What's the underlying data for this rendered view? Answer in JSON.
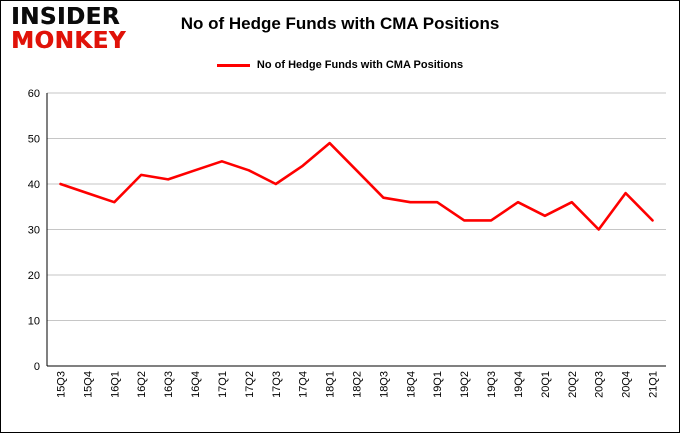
{
  "logo": {
    "line1": "INSIDER",
    "line2": "MONKEY"
  },
  "colors": {
    "series_red": "#fe0000",
    "logo_red": "#e01209",
    "gridline": "#c6c6c6",
    "axis": "#000000",
    "text": "#000000",
    "background": "#ffffff"
  },
  "chart_data": {
    "type": "line",
    "title": "No of Hedge Funds with CMA Positions",
    "legend": "No of Hedge Funds with CMA Positions",
    "legend_position": "top",
    "grid": true,
    "xlabel": "",
    "ylabel": "",
    "ylim": [
      0,
      60
    ],
    "ytick_step": 10,
    "categories": [
      "15Q3",
      "15Q4",
      "16Q1",
      "16Q2",
      "16Q3",
      "16Q4",
      "17Q1",
      "17Q2",
      "17Q3",
      "17Q4",
      "18Q1",
      "18Q2",
      "18Q3",
      "18Q4",
      "19Q1",
      "19Q2",
      "19Q3",
      "19Q4",
      "20Q1",
      "20Q2",
      "20Q3",
      "20Q4",
      "21Q1"
    ],
    "series": [
      {
        "name": "No of Hedge Funds with CMA Positions",
        "color": "#fe0000",
        "values": [
          40,
          38,
          36,
          42,
          41,
          43,
          45,
          43,
          40,
          44,
          49,
          43,
          37,
          36,
          36,
          32,
          32,
          36,
          33,
          36,
          30,
          38,
          32
        ]
      }
    ]
  }
}
